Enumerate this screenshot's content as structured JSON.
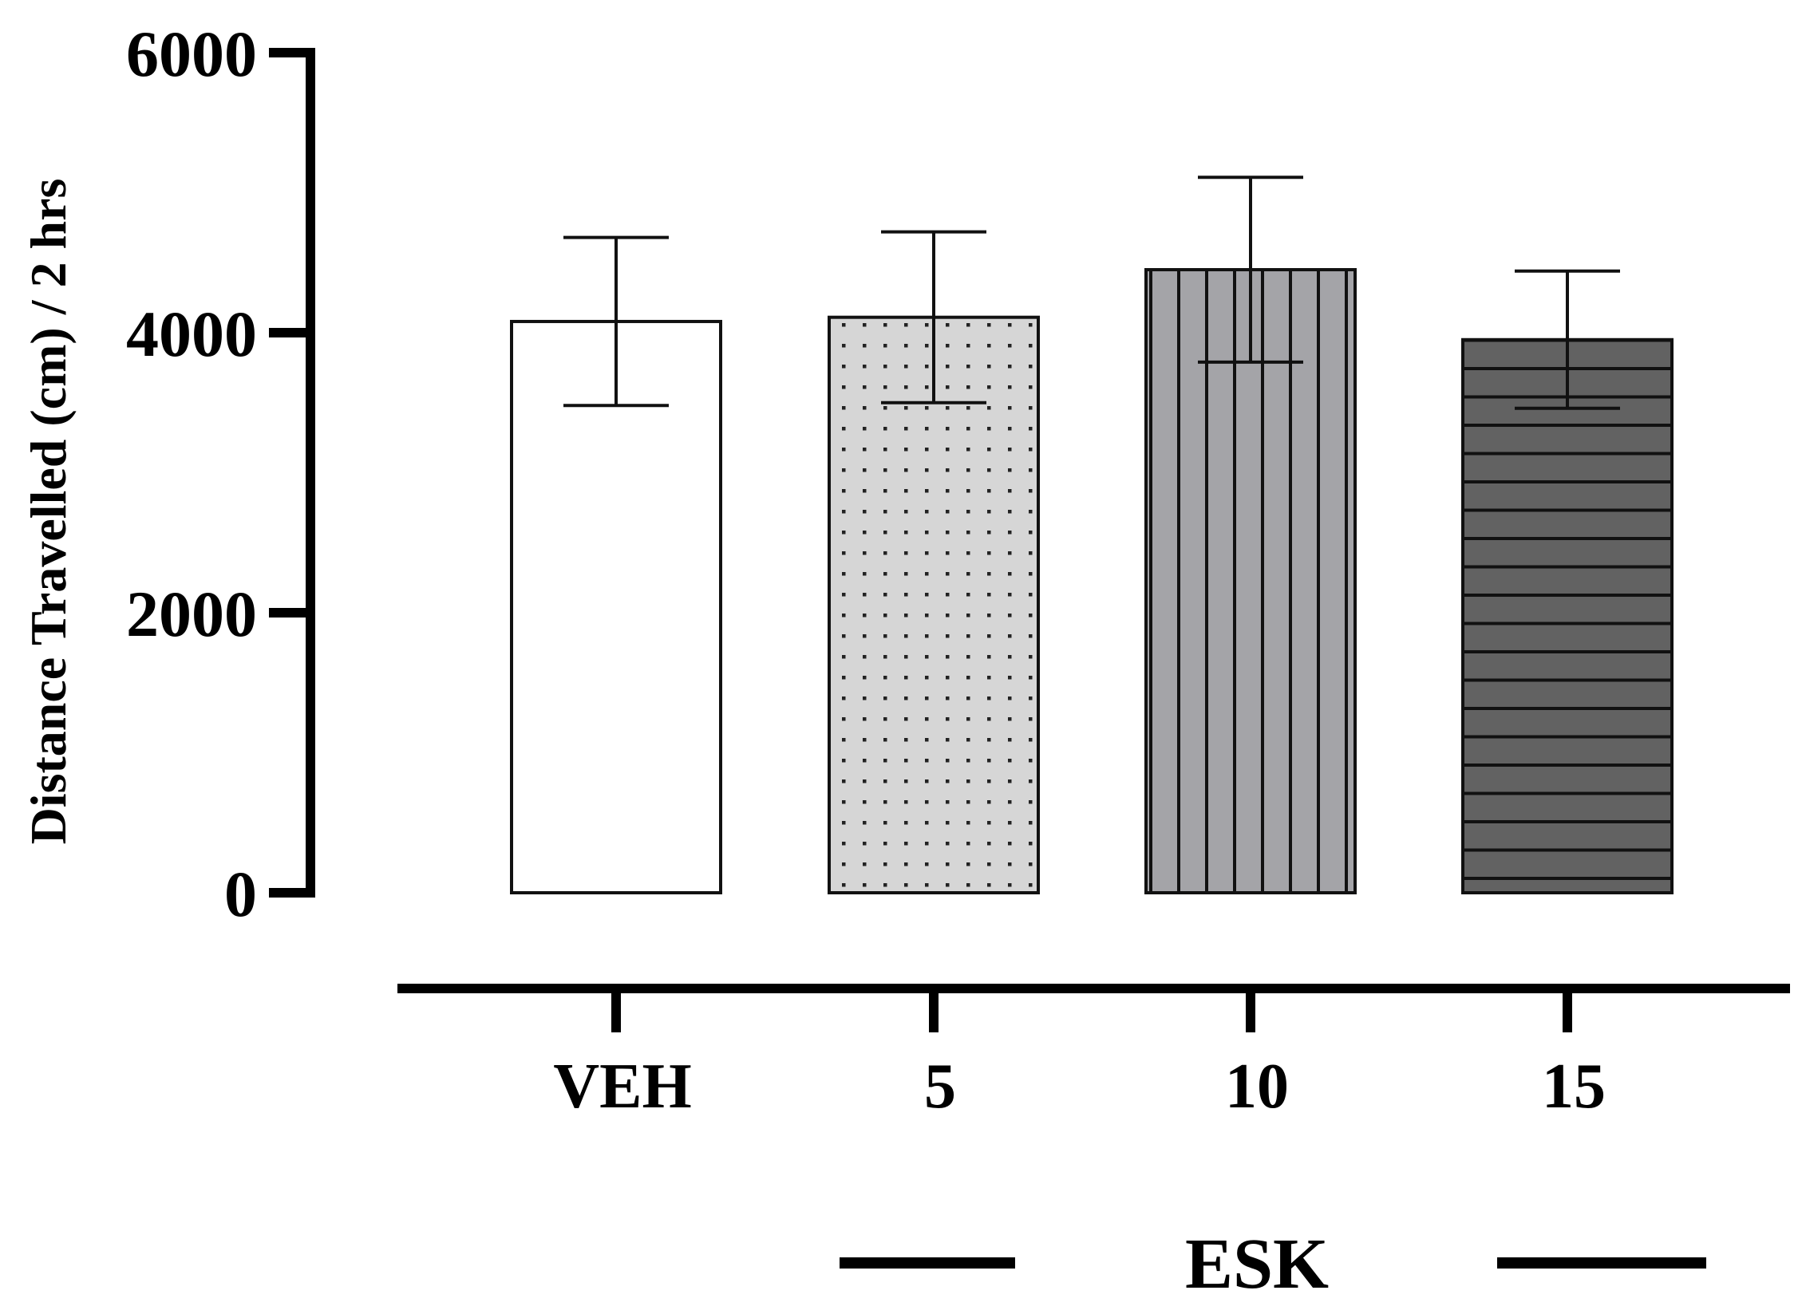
{
  "chart_data": {
    "type": "bar",
    "title": "",
    "xlabel": "",
    "ylabel": "Distance  Travelled (cm) / 2 hrs",
    "ylim": [
      0,
      6000
    ],
    "yticks": [
      0,
      2000,
      4000,
      6000
    ],
    "ytick_labels": [
      "0",
      "2000",
      "4000",
      "6000"
    ],
    "categories": [
      "VEH",
      "5",
      "10",
      "15"
    ],
    "values": [
      4080,
      4110,
      4450,
      3950
    ],
    "errors": [
      600,
      610,
      660,
      490
    ],
    "group_label": "ESK",
    "fills": [
      {
        "pattern": "solid",
        "color": "#ffffff"
      },
      {
        "pattern": "dots",
        "color": "#d6d6d6"
      },
      {
        "pattern": "vertical-lines",
        "color": "#a4a4a8"
      },
      {
        "pattern": "horizontal-lines",
        "color": "#626262"
      }
    ]
  }
}
